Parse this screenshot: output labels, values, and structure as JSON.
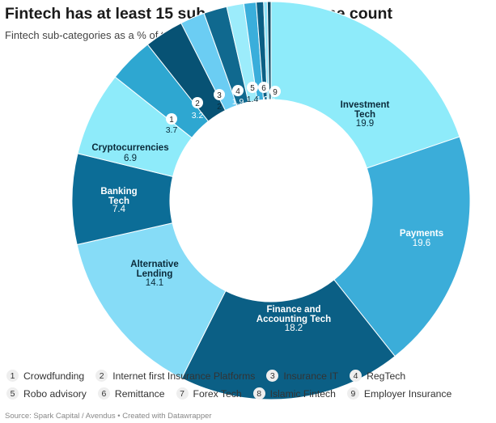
{
  "header": {
    "title": "Fintech has at least 15 sub-categories by one count",
    "subtitle": "Fintech sub-categories as a % of total number of fintech companies"
  },
  "source": "Source: Spark Capital / Avendus • Created with Datawrapper",
  "legend": [
    {
      "num": "1",
      "label": "Crowdfunding"
    },
    {
      "num": "2",
      "label": "Internet first Insurance Platforms"
    },
    {
      "num": "3",
      "label": "Insurance IT"
    },
    {
      "num": "4",
      "label": "RegTech"
    },
    {
      "num": "5",
      "label": "Robo advisory"
    },
    {
      "num": "6",
      "label": "Remittance"
    },
    {
      "num": "7",
      "label": "Forex Tech"
    },
    {
      "num": "8",
      "label": "Islamic Fintech"
    },
    {
      "num": "9",
      "label": "Employer Insurance"
    }
  ],
  "chart_data": {
    "type": "pie",
    "title": "Fintech has at least 15 sub-categories by one count",
    "subtitle": "Fintech sub-categories as a % of total number of fintech companies",
    "slices": [
      {
        "label": "Investment Tech",
        "value": 19.9,
        "value_text": "19.9",
        "color": "#8eebfa"
      },
      {
        "label": "Payments",
        "value": 19.6,
        "value_text": "19.6",
        "color": "#3badd9"
      },
      {
        "label": "Finance and Accounting Tech",
        "value": 18.2,
        "value_text": "18.2",
        "color": "#0b5f85"
      },
      {
        "label": "Alternative Lending",
        "value": 14.1,
        "value_text": "14.1",
        "color": "#86dcf7"
      },
      {
        "label": "Banking Tech",
        "value": 7.4,
        "value_text": "7.4",
        "color": "#0c6d97"
      },
      {
        "label": "Cryptocurrencies",
        "value": 6.9,
        "value_text": "6.9",
        "color": "#8eebfa"
      },
      {
        "label": "1",
        "value": 3.7,
        "value_text": "3.7",
        "color": "#2ea7d1"
      },
      {
        "label": "2",
        "value": 3.2,
        "value_text": "3.2",
        "color": "#075274"
      },
      {
        "label": "3",
        "value": 2.0,
        "value_text": "2",
        "color": "#6bcdf3"
      },
      {
        "label": "4",
        "value": 1.9,
        "value_text": "1.9",
        "color": "#10698f"
      },
      {
        "label": "5",
        "value": 1.4,
        "value_text": "1.4",
        "color": "#9cecfb"
      },
      {
        "label": "6",
        "value": 1.0,
        "value_text": "1.0",
        "color": "#3aaedb"
      },
      {
        "label": "7",
        "value": 0.6,
        "value_text": "0.6",
        "color": "#0b5f85"
      },
      {
        "label": "8",
        "value": 0.3,
        "value_text": "",
        "color": "#8fe3f8"
      },
      {
        "label": "9",
        "value": 0.3,
        "value_text": "",
        "color": "#0a4a66"
      }
    ]
  }
}
